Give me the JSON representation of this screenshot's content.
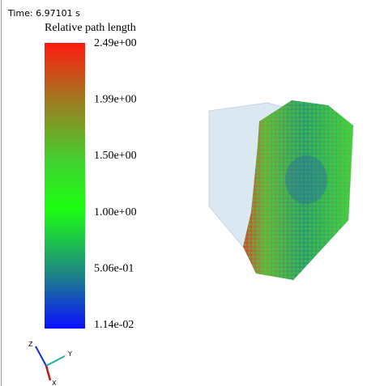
{
  "time_label": "Time: 6.97101 s",
  "colorbar": {
    "title": "Relative path length",
    "ticks": [
      "2.49e+00",
      "1.99e+00",
      "1.50e+00",
      "1.00e+00",
      "5.06e-01",
      "1.14e-02"
    ]
  },
  "axes": {
    "z": "Z",
    "y": "Y",
    "x": "X"
  }
}
